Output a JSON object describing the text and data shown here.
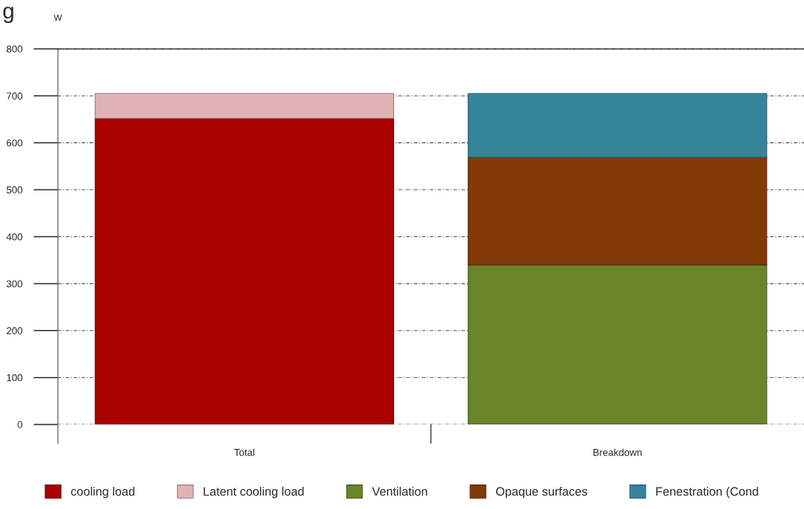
{
  "chart_data": {
    "type": "bar",
    "title": "g",
    "ylabel": "W",
    "categories": [
      "Total",
      "Breakdown"
    ],
    "stacked": true,
    "series": [
      {
        "name": "cooling load",
        "color": "#aa0000",
        "values": [
          652,
          null
        ]
      },
      {
        "name": "Latent cooling load",
        "color": "#e0b4b4",
        "values": [
          53,
          null
        ]
      },
      {
        "name": "Ventilation",
        "color": "#688529",
        "values": [
          null,
          340
        ]
      },
      {
        "name": "Opaque surfaces",
        "color": "#843a06",
        "values": [
          null,
          229
        ]
      },
      {
        "name": "Fenestration (Cond",
        "color": "#35869b",
        "values": [
          null,
          136
        ]
      }
    ],
    "ylim": [
      0,
      800
    ],
    "yticks": [
      0,
      100,
      200,
      300,
      400,
      500,
      600,
      700,
      800
    ],
    "grid": "y",
    "legend": "bottom"
  }
}
